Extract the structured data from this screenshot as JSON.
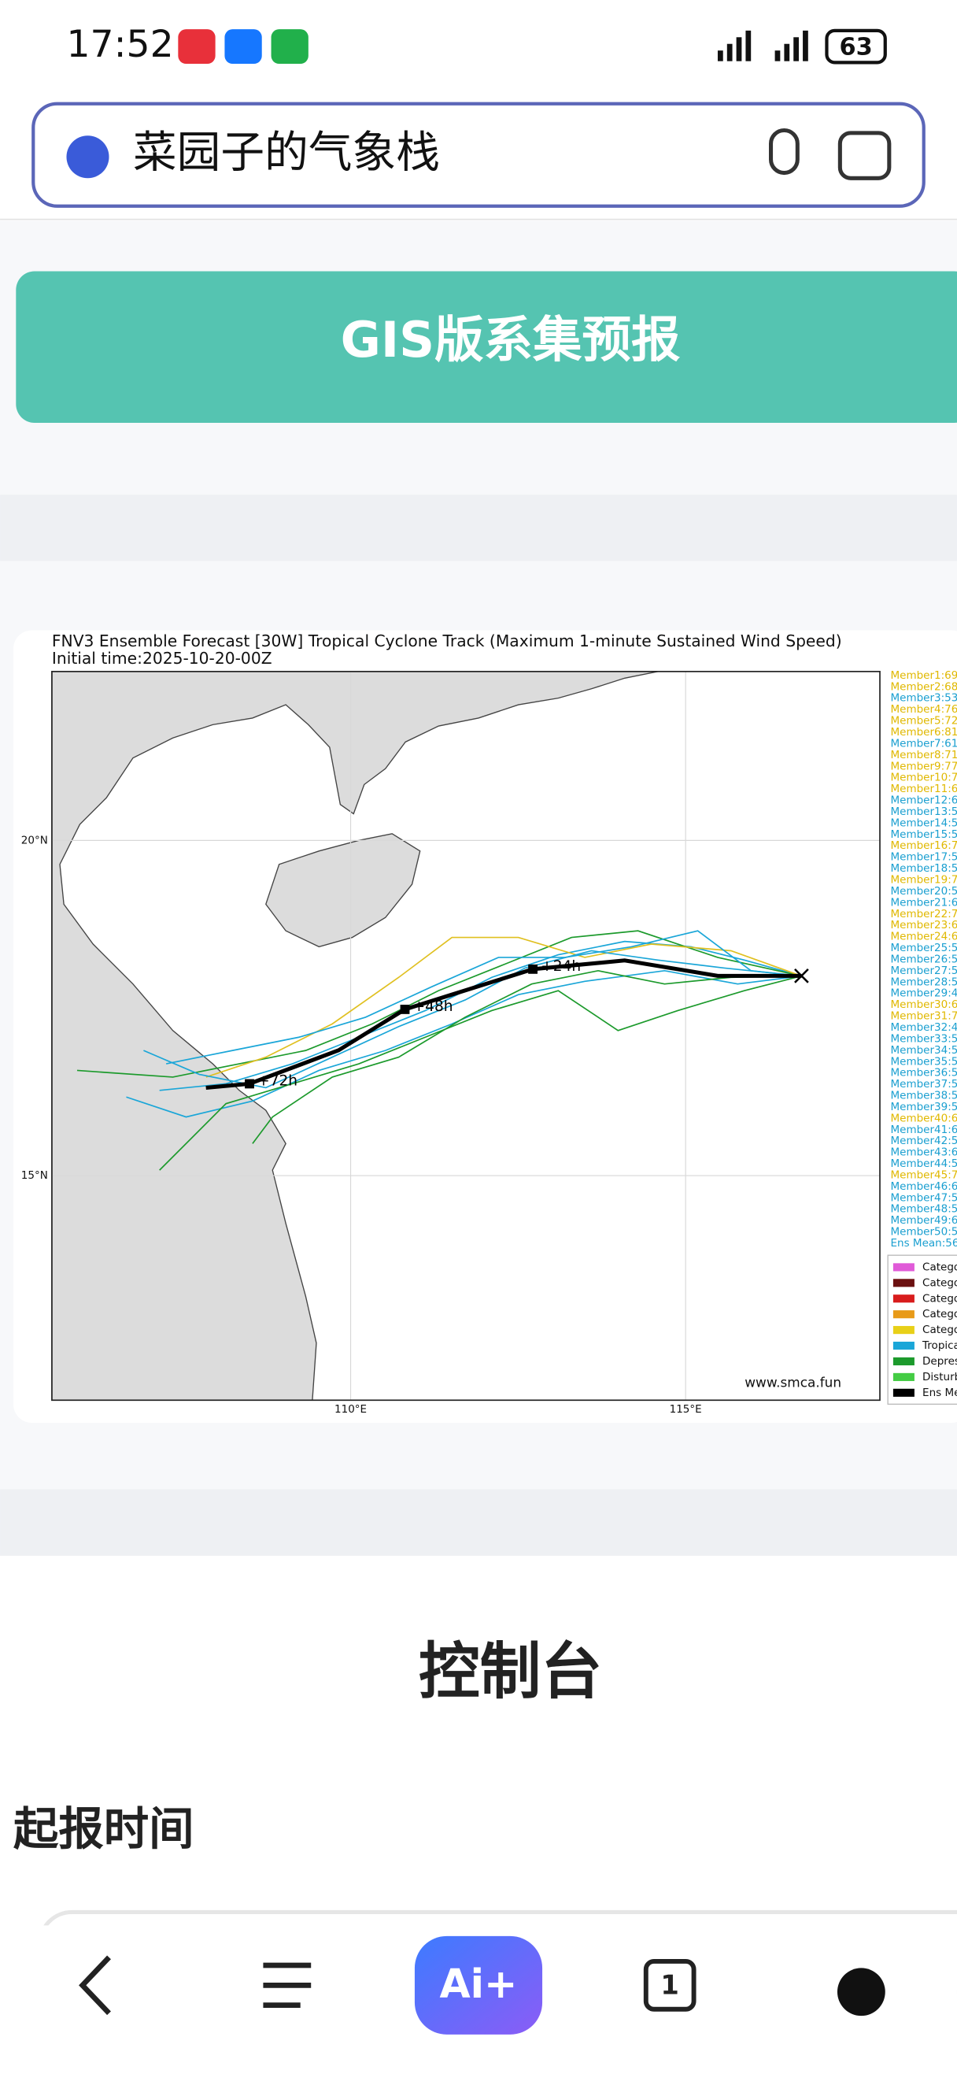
{
  "status_bar": {
    "time": "17:52",
    "battery": "63"
  },
  "search": {
    "query": "菜园子的气象栈"
  },
  "button": {
    "label": "GIS版系集预报"
  },
  "chart_data": {
    "type": "track_map",
    "title": "FNV3 Ensemble Forecast [30W] Tropical Cyclone Track (Maximum 1-minute Sustained Wind Speed)",
    "subtitle": "Initial time:2025-10-20-00Z",
    "credit": "www.smca.fun",
    "xlim": [
      105.54,
      117.9
    ],
    "ylim": [
      11.65,
      22.52
    ],
    "xticks": [
      {
        "value": 110,
        "label": "110°E"
      },
      {
        "value": 115,
        "label": "115°E"
      }
    ],
    "yticks": [
      {
        "value": 20,
        "label": "20°N"
      },
      {
        "value": 15,
        "label": "15°N"
      }
    ],
    "grid": true,
    "mean_track": {
      "color": "#000000",
      "lon": [
        116.73,
        115.48,
        114.09,
        112.72,
        111.51,
        110.81,
        109.82,
        108.49,
        107.84
      ],
      "lat": [
        17.98,
        17.98,
        18.21,
        18.08,
        17.7,
        17.48,
        16.87,
        16.37,
        16.31
      ],
      "time_labels": [
        null,
        null,
        null,
        "+24h",
        null,
        "+48h",
        null,
        "+72h",
        null
      ]
    },
    "member_legend": [
      {
        "text": "Member1:69",
        "color": "#e0b800"
      },
      {
        "text": "Member2:68",
        "color": "#e0b800"
      },
      {
        "text": "Member3:53",
        "color": "#1a9fd0"
      },
      {
        "text": "Member4:76",
        "color": "#e0b800"
      },
      {
        "text": "Member5:72",
        "color": "#e0b800"
      },
      {
        "text": "Member6:81",
        "color": "#e0b800"
      },
      {
        "text": "Member7:61",
        "color": "#1a9fd0"
      },
      {
        "text": "Member8:71",
        "color": "#e0b800"
      },
      {
        "text": "Member9:77",
        "color": "#e0b800"
      },
      {
        "text": "Member10:7",
        "color": "#e0b800"
      },
      {
        "text": "Member11:6",
        "color": "#e0b800"
      },
      {
        "text": "Member12:6",
        "color": "#1a9fd0"
      },
      {
        "text": "Member13:5",
        "color": "#1a9fd0"
      },
      {
        "text": "Member14:5",
        "color": "#1a9fd0"
      },
      {
        "text": "Member15:5",
        "color": "#1a9fd0"
      },
      {
        "text": "Member16:7",
        "color": "#e0b800"
      },
      {
        "text": "Member17:5",
        "color": "#1a9fd0"
      },
      {
        "text": "Member18:5",
        "color": "#1a9fd0"
      },
      {
        "text": "Member19:7",
        "color": "#e0b800"
      },
      {
        "text": "Member20:5",
        "color": "#1a9fd0"
      },
      {
        "text": "Member21:6",
        "color": "#1a9fd0"
      },
      {
        "text": "Member22:7",
        "color": "#e0b800"
      },
      {
        "text": "Member23:6",
        "color": "#e0b800"
      },
      {
        "text": "Member24:6",
        "color": "#e0b800"
      },
      {
        "text": "Member25:5",
        "color": "#1a9fd0"
      },
      {
        "text": "Member26:5",
        "color": "#1a9fd0"
      },
      {
        "text": "Member27:5",
        "color": "#1a9fd0"
      },
      {
        "text": "Member28:5",
        "color": "#1a9fd0"
      },
      {
        "text": "Member29:4",
        "color": "#1a9fd0"
      },
      {
        "text": "Member30:6",
        "color": "#e0b800"
      },
      {
        "text": "Member31:7",
        "color": "#e0b800"
      },
      {
        "text": "Member32:4",
        "color": "#1a9fd0"
      },
      {
        "text": "Member33:5",
        "color": "#1a9fd0"
      },
      {
        "text": "Member34:5",
        "color": "#1a9fd0"
      },
      {
        "text": "Member35:5",
        "color": "#1a9fd0"
      },
      {
        "text": "Member36:5",
        "color": "#1a9fd0"
      },
      {
        "text": "Member37:5",
        "color": "#1a9fd0"
      },
      {
        "text": "Member38:5",
        "color": "#1a9fd0"
      },
      {
        "text": "Member39:5",
        "color": "#1a9fd0"
      },
      {
        "text": "Member40:6",
        "color": "#e0b800"
      },
      {
        "text": "Member41:6",
        "color": "#1a9fd0"
      },
      {
        "text": "Member42:5",
        "color": "#1a9fd0"
      },
      {
        "text": "Member43:6",
        "color": "#1a9fd0"
      },
      {
        "text": "Member44:5",
        "color": "#1a9fd0"
      },
      {
        "text": "Member45:7",
        "color": "#e0b800"
      },
      {
        "text": "Member46:6",
        "color": "#1a9fd0"
      },
      {
        "text": "Member47:5",
        "color": "#1a9fd0"
      },
      {
        "text": "Member48:5",
        "color": "#1a9fd0"
      },
      {
        "text": "Member49:6",
        "color": "#1a9fd0"
      },
      {
        "text": "Member50:5",
        "color": "#1a9fd0"
      },
      {
        "text": "Ens Mean:56",
        "color": "#1a9fd0"
      }
    ],
    "category_legend": [
      {
        "text": "Catego",
        "color": "#e05ad8"
      },
      {
        "text": "Catego",
        "color": "#6b1010"
      },
      {
        "text": "Catego",
        "color": "#d81c1c"
      },
      {
        "text": "Catego",
        "color": "#e89a18"
      },
      {
        "text": "Catego",
        "color": "#e8d018"
      },
      {
        "text": "Tropica",
        "color": "#1aa6d8"
      },
      {
        "text": "Depres",
        "color": "#1c9a2c"
      },
      {
        "text": "Disturb",
        "color": "#44cc44"
      },
      {
        "text": "Ens Me",
        "color": "#000000"
      }
    ]
  },
  "console": {
    "heading": "控制台",
    "field_label": "起报时间"
  },
  "bottom_nav": {
    "ai_label": "Ai+",
    "tab_count": "1"
  }
}
